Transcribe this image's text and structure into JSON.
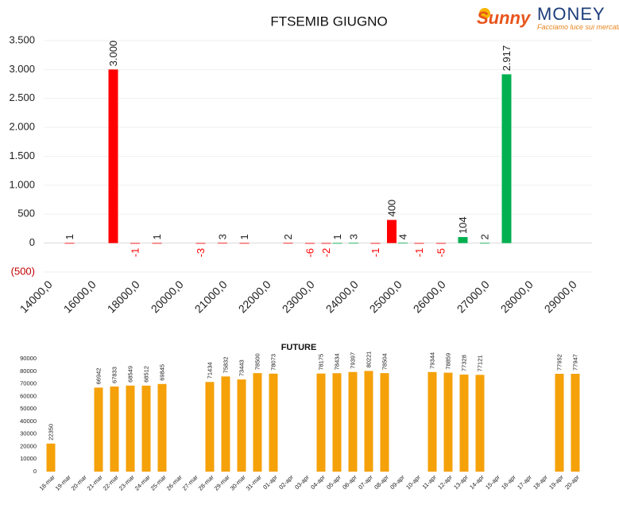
{
  "logo": {
    "brand": "Sunny",
    "name": "MONEY",
    "tagline": "Facciamo luce sui mercati"
  },
  "chart_data": [
    {
      "type": "bar",
      "title": "FTSEMIB GIUGNO",
      "categories": [
        "14000,0",
        null,
        "16000,0",
        null,
        "18000,0",
        null,
        "20000,0",
        null,
        "21000,0",
        null,
        "22000,0",
        null,
        "23000,0",
        null,
        "24000,0",
        null,
        "25000,0",
        null,
        "26000,0",
        null,
        "27000,0",
        null,
        "28000,0",
        null,
        "29000,0",
        null
      ],
      "series": [
        {
          "color": "#ff0000",
          "values": [
            null,
            1,
            null,
            3000,
            -1,
            1,
            null,
            -3,
            3,
            1,
            null,
            2,
            -6,
            -2,
            null,
            -1,
            400,
            -1,
            -5,
            null,
            null,
            null,
            null,
            null,
            null,
            null
          ],
          "value_labels": [
            null,
            "1",
            null,
            "3.000",
            "-1",
            "1",
            null,
            "-3",
            "3",
            "1",
            null,
            "2",
            "-6",
            "-2",
            null,
            "-1",
            "400",
            "-1",
            "-5",
            null,
            null,
            null,
            null,
            null,
            null,
            null
          ]
        },
        {
          "color": "#00b050",
          "values": [
            null,
            null,
            null,
            null,
            null,
            null,
            null,
            null,
            null,
            null,
            null,
            null,
            null,
            1,
            3,
            null,
            4,
            null,
            null,
            104,
            2,
            2917,
            null,
            null,
            null,
            null
          ],
          "value_labels": [
            null,
            null,
            null,
            null,
            null,
            null,
            null,
            null,
            null,
            null,
            null,
            null,
            null,
            "1",
            "3",
            null,
            "4",
            null,
            null,
            "104",
            "2",
            "2.917",
            null,
            null,
            null,
            null
          ]
        }
      ],
      "ylim": [
        -500,
        3500
      ],
      "yticks": [
        {
          "value": -500,
          "label": "(500)"
        },
        0,
        500,
        {
          "value": 1000,
          "label": "1.000"
        },
        {
          "value": 1500,
          "label": "1.500"
        },
        {
          "value": 2000,
          "label": "2.000"
        },
        {
          "value": 2500,
          "label": "2.500"
        },
        {
          "value": 3000,
          "label": "3.000"
        },
        {
          "value": 3500,
          "label": "3.500"
        }
      ],
      "grid": true
    },
    {
      "type": "bar",
      "title": "FUTURE",
      "categories": [
        "18-mar",
        "19-mar",
        "20-mar",
        "21-mar",
        "22-mar",
        "23-mar",
        "24-mar",
        "25-mar",
        "26-mar",
        "27-mar",
        "28-mar",
        "29-mar",
        "30-mar",
        "31-mar",
        "01-apr",
        "02-apr",
        "03-apr",
        "04-apr",
        "05-apr",
        "06-apr",
        "07-apr",
        "08-apr",
        "09-apr",
        "10-apr",
        "11-apr",
        "12-apr",
        "13-apr",
        "14-apr",
        "15-apr",
        "16-apr",
        "17-apr",
        "18-apr",
        "19-apr",
        "20-apr"
      ],
      "series": [
        {
          "color": "#f5a10a",
          "values": [
            22350,
            null,
            null,
            66942,
            67833,
            68549,
            68512,
            69845,
            null,
            null,
            71434,
            75832,
            73443,
            78500,
            78073,
            null,
            null,
            78175,
            78434,
            79397,
            80221,
            78504,
            null,
            null,
            79344,
            78859,
            77328,
            77121,
            null,
            null,
            null,
            null,
            77952,
            77947
          ]
        }
      ],
      "ylim": [
        0,
        90000
      ],
      "yticks": [
        0,
        10000,
        20000,
        30000,
        40000,
        50000,
        60000,
        70000,
        80000,
        90000
      ],
      "grid": false
    }
  ]
}
